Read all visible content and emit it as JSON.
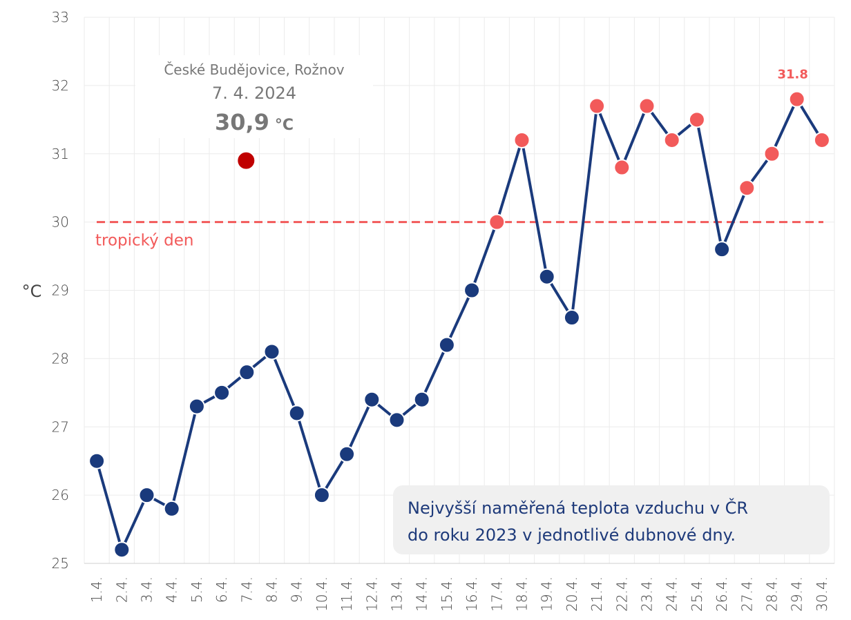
{
  "chart_data": {
    "type": "line",
    "ylabel": "°C",
    "ylim": [
      25,
      33
    ],
    "yticks": [
      "25",
      "26",
      "27",
      "28",
      "29",
      "30",
      "31",
      "32",
      "33"
    ],
    "categories": [
      "1.4.",
      "2.4.",
      "3.4.",
      "4.4.",
      "5.4.",
      "6.4.",
      "7.4.",
      "8.4.",
      "9.4.",
      "10.4.",
      "11.4.",
      "12.4.",
      "13.4.",
      "14.4.",
      "15.4.",
      "16.4.",
      "17.4.",
      "18.4.",
      "19.4.",
      "20.4.",
      "21.4.",
      "22.4.",
      "23.4.",
      "24.4.",
      "25.4.",
      "26.4.",
      "27.4.",
      "28.4.",
      "29.4.",
      "30.4."
    ],
    "series": [
      {
        "values": [
          26.5,
          25.2,
          26.0,
          25.8,
          27.3,
          27.5,
          27.8,
          28.1,
          27.2,
          26.0,
          26.6,
          27.4,
          27.1,
          27.4,
          28.2,
          29.0,
          30.0,
          31.2,
          29.2,
          28.6,
          31.7,
          30.8,
          31.7,
          31.2,
          31.5,
          29.6,
          30.5,
          31.0,
          31.8,
          31.2
        ],
        "color": "#1a3a7c",
        "highlight_color": "#f25a5a",
        "highlight_min": 30
      }
    ],
    "reference_line": {
      "value": 30,
      "label": "tropický den",
      "color": "#f25a5a",
      "style": "dashed"
    },
    "max_label": {
      "category": "29.4.",
      "value": 31.8,
      "text": "31.8"
    },
    "highlight_point": {
      "category": "7.4.",
      "value": 30.9,
      "color": "#c00000",
      "location": "České Budějovice, Rožnov",
      "date": "7. 4. 2024",
      "value_text": "30,9",
      "unit": "°C"
    },
    "annotation": {
      "line1": "Nejvyšší naměřená teplota vzduchu v ČR",
      "line2": "do roku 2023 v jednotlivé dubnové dny."
    },
    "grid": true
  }
}
